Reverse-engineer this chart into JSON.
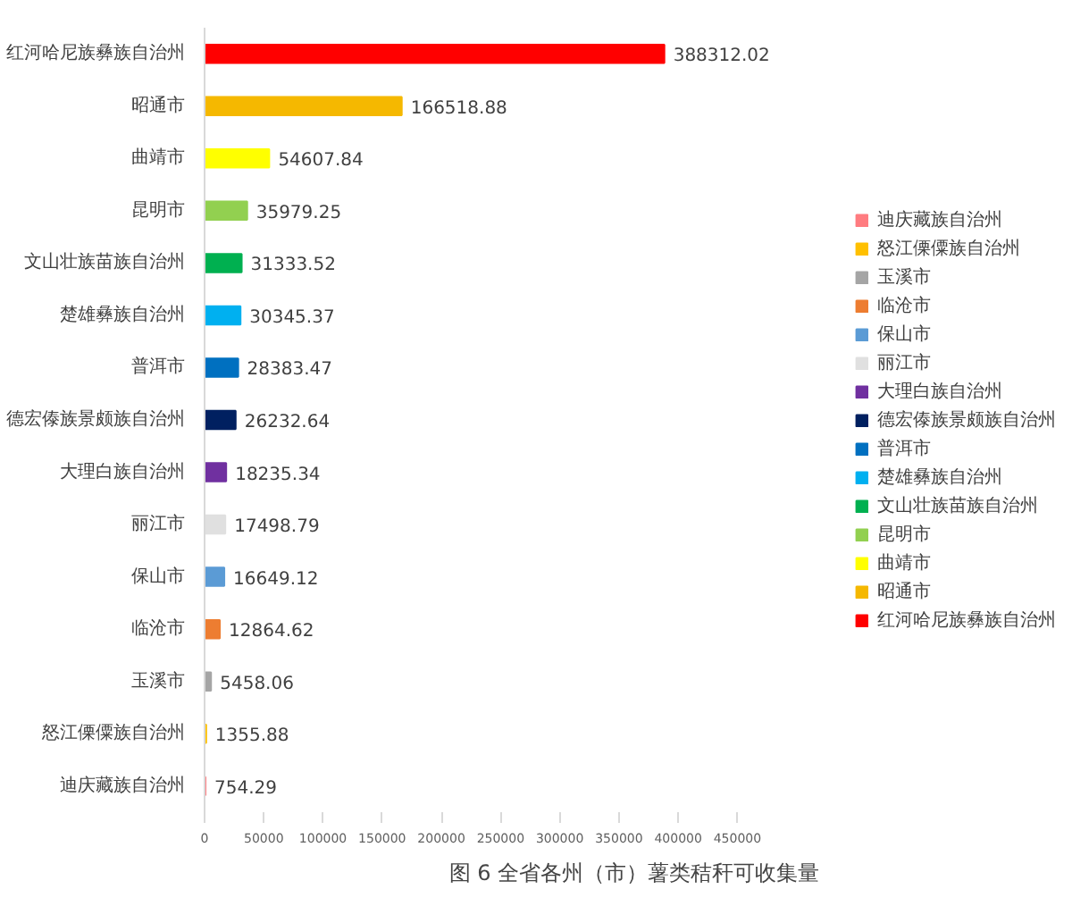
{
  "chart_data": {
    "type": "bar",
    "orientation": "horizontal",
    "title": "图 6 全省各州（市）薯类秸秆可收集量",
    "categories": [
      "红河哈尼族彝族自治州",
      "昭通市",
      "曲靖市",
      "昆明市",
      "文山壮族苗族自治州",
      "楚雄彝族自治州",
      "普洱市",
      "德宏傣族景颇族自治州",
      "大理白族自治州",
      "丽江市",
      "保山市",
      "临沧市",
      "玉溪市",
      "怒江傈僳族自治州",
      "迪庆藏族自治州"
    ],
    "series": [
      {
        "name": "迪庆藏族自治州",
        "color": "#ff7c80",
        "values": [
          null,
          null,
          null,
          null,
          null,
          null,
          null,
          null,
          null,
          null,
          null,
          null,
          null,
          null,
          754.29
        ]
      },
      {
        "name": "怒江傈僳族自治州",
        "color": "#ffc000",
        "values": [
          null,
          null,
          null,
          null,
          null,
          null,
          null,
          null,
          null,
          null,
          null,
          null,
          null,
          1355.88,
          null
        ]
      },
      {
        "name": "玉溪市",
        "color": "#a5a5a5",
        "values": [
          null,
          null,
          null,
          null,
          null,
          null,
          null,
          null,
          null,
          null,
          null,
          null,
          5458.06,
          null,
          null
        ]
      },
      {
        "name": "临沧市",
        "color": "#ed7d31",
        "values": [
          null,
          null,
          null,
          null,
          null,
          null,
          null,
          null,
          null,
          null,
          null,
          12864.62,
          null,
          null,
          null
        ]
      },
      {
        "name": "保山市",
        "color": "#5b9bd5",
        "values": [
          null,
          null,
          null,
          null,
          null,
          null,
          null,
          null,
          null,
          null,
          16649.12,
          null,
          null,
          null,
          null
        ]
      },
      {
        "name": "丽江市",
        "color": "#e0e0e0",
        "values": [
          null,
          null,
          null,
          null,
          null,
          null,
          null,
          null,
          null,
          17498.79,
          null,
          null,
          null,
          null,
          null
        ]
      },
      {
        "name": "大理白族自治州",
        "color": "#7030a0",
        "values": [
          null,
          null,
          null,
          null,
          null,
          null,
          null,
          null,
          18235.34,
          null,
          null,
          null,
          null,
          null,
          null
        ]
      },
      {
        "name": "德宏傣族景颇族自治州",
        "color": "#002060",
        "values": [
          null,
          null,
          null,
          null,
          null,
          null,
          null,
          26232.64,
          null,
          null,
          null,
          null,
          null,
          null,
          null
        ]
      },
      {
        "name": "普洱市",
        "color": "#0070c0",
        "values": [
          null,
          null,
          null,
          null,
          null,
          null,
          28383.47,
          null,
          null,
          null,
          null,
          null,
          null,
          null,
          null
        ]
      },
      {
        "name": "楚雄彝族自治州",
        "color": "#00b0f0",
        "values": [
          null,
          null,
          null,
          null,
          null,
          30345.37,
          null,
          null,
          null,
          null,
          null,
          null,
          null,
          null,
          null
        ]
      },
      {
        "name": "文山壮族苗族自治州",
        "color": "#00b050",
        "values": [
          null,
          null,
          null,
          null,
          31333.52,
          null,
          null,
          null,
          null,
          null,
          null,
          null,
          null,
          null,
          null
        ]
      },
      {
        "name": "昆明市",
        "color": "#92d050",
        "values": [
          null,
          null,
          null,
          35979.25,
          null,
          null,
          null,
          null,
          null,
          null,
          null,
          null,
          null,
          null,
          null
        ]
      },
      {
        "name": "曲靖市",
        "color": "#ffff00",
        "values": [
          null,
          null,
          54607.84,
          null,
          null,
          null,
          null,
          null,
          null,
          null,
          null,
          null,
          null,
          null,
          null
        ]
      },
      {
        "name": "昭通市",
        "color": "#f5b800",
        "values": [
          null,
          166518.88,
          null,
          null,
          null,
          null,
          null,
          null,
          null,
          null,
          null,
          null,
          null,
          null,
          null
        ]
      },
      {
        "name": "红河哈尼族彝族自治州",
        "color": "#ff0000",
        "values": [
          388312.02,
          null,
          null,
          null,
          null,
          null,
          null,
          null,
          null,
          null,
          null,
          null,
          null,
          null,
          null
        ]
      }
    ],
    "xlim": [
      0,
      450000
    ],
    "xticks": [
      0,
      50000,
      100000,
      150000,
      200000,
      250000,
      300000,
      350000,
      400000,
      450000
    ],
    "data_labels": true,
    "grid": false,
    "legend": "right"
  }
}
